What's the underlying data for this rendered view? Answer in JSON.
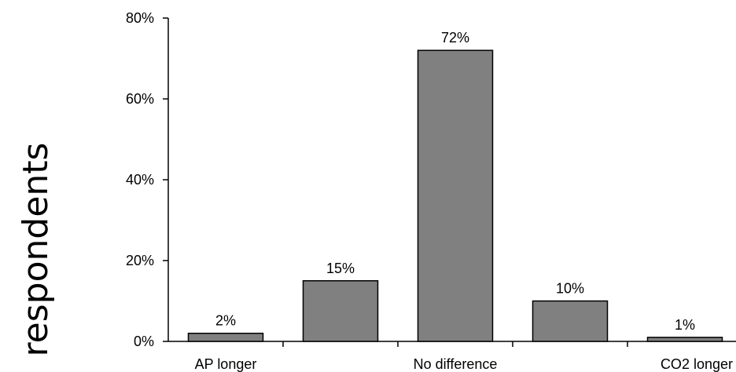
{
  "chart_data": {
    "type": "bar",
    "categories": [
      "AP longer",
      "",
      "No difference",
      "",
      "CO2 longer"
    ],
    "values": [
      2,
      15,
      72,
      10,
      1
    ],
    "data_labels": [
      "2%",
      "15%",
      "72%",
      "10%",
      "1%"
    ],
    "ylabel": "respondents",
    "ylim": [
      0,
      80
    ],
    "yticks": [
      0,
      20,
      40,
      60,
      80
    ],
    "ytick_labels": [
      "0%",
      "20%",
      "40%",
      "60%",
      "80%"
    ],
    "bar_color": "#808080",
    "bar_edge_color": "#000000",
    "grid": false
  }
}
